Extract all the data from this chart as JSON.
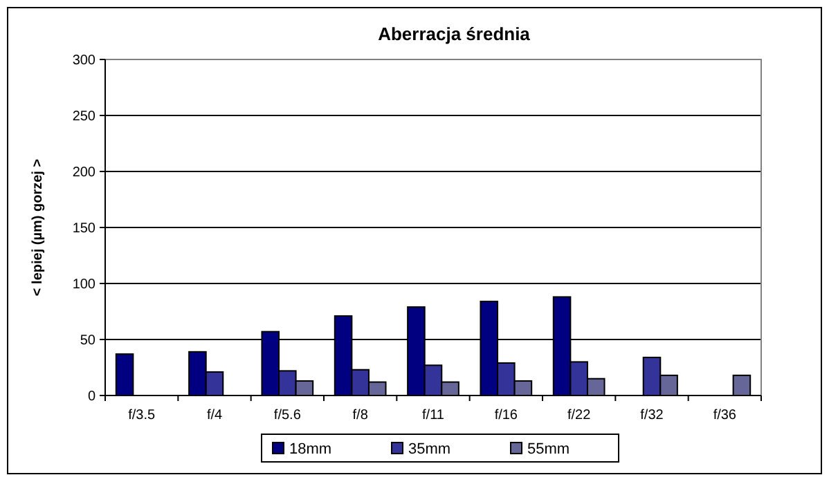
{
  "chart_data": {
    "type": "bar",
    "title": "Aberracja średnia",
    "ylabel": "< lepiej (µm) gorzej >",
    "categories": [
      "f/3.5",
      "f/4",
      "f/5.6",
      "f/8",
      "f/11",
      "f/16",
      "f/22",
      "f/32",
      "f/36"
    ],
    "series": [
      {
        "name": "18mm",
        "color": "#000080",
        "values": [
          37,
          39,
          57,
          71,
          79,
          84,
          88,
          null,
          null
        ]
      },
      {
        "name": "35mm",
        "color": "#333399",
        "values": [
          null,
          21,
          22,
          23,
          27,
          29,
          30,
          34,
          null
        ]
      },
      {
        "name": "55mm",
        "color": "#666699",
        "values": [
          null,
          null,
          13,
          12,
          12,
          13,
          15,
          18,
          18
        ]
      }
    ],
    "ylim": [
      0,
      300
    ],
    "yticks": [
      0,
      50,
      100,
      150,
      200,
      250,
      300
    ],
    "grid": "y",
    "legend": "bottom"
  }
}
